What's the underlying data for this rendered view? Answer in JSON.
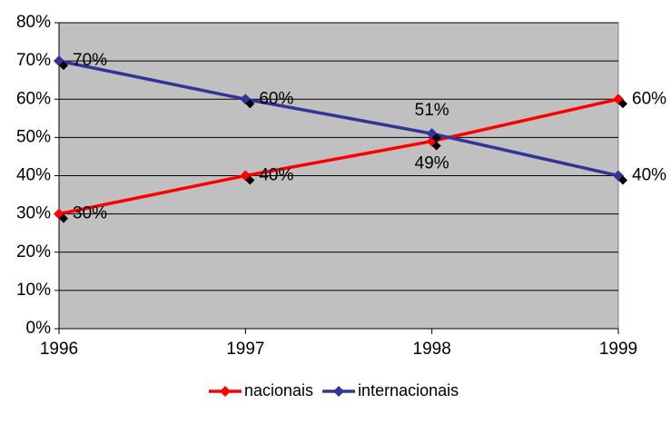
{
  "chart_data": {
    "type": "line",
    "x": [
      1996,
      1997,
      1998,
      1999
    ],
    "xlim": [
      1996,
      1999
    ],
    "xticks": [
      1996,
      1997,
      1998,
      1999
    ],
    "ylim": [
      0,
      80
    ],
    "yticks": [
      {
        "value": 0,
        "label": "0%"
      },
      {
        "value": 10,
        "label": "10%"
      },
      {
        "value": 20,
        "label": "20%"
      },
      {
        "value": 30,
        "label": "30%"
      },
      {
        "value": 40,
        "label": "40%"
      },
      {
        "value": 50,
        "label": "50%"
      },
      {
        "value": 60,
        "label": "60%"
      },
      {
        "value": 70,
        "label": "70%"
      },
      {
        "value": 80,
        "label": "80%"
      }
    ],
    "grid": true,
    "series": [
      {
        "name": "nacionais",
        "color": "#ff0000",
        "values": [
          30,
          40,
          49,
          60
        ],
        "value_labels": [
          "30%",
          "40%",
          "49%",
          "60%"
        ]
      },
      {
        "name": "internacionais",
        "color": "#333399",
        "values": [
          70,
          60,
          51,
          40
        ],
        "value_labels": [
          "70%",
          "60%",
          "51%",
          "40%"
        ]
      }
    ]
  }
}
